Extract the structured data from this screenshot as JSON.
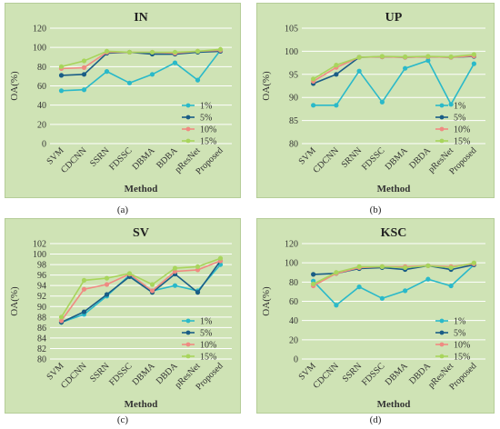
{
  "colors": {
    "panel_bg": "#cfe3b5",
    "panel_border": "#b5cd98",
    "grid": "#ffffff",
    "axis_text": "#333333"
  },
  "captions": [
    "(a)",
    "(b)",
    "(c)",
    "(d)"
  ],
  "chart_data": [
    {
      "type": "line",
      "title": "IN",
      "xlabel": "Method",
      "ylabel": "OA(%)",
      "categories": [
        "SVM",
        "CDCNN",
        "SSRN",
        "FDSSC",
        "DBMA",
        "BDBA",
        "pResNet",
        "Proposed"
      ],
      "ylim": [
        0,
        120
      ],
      "yticks": [
        0,
        20,
        40,
        60,
        80,
        100,
        120
      ],
      "legend": "right",
      "series": [
        {
          "name": "1%",
          "color": "#2ab9c9",
          "values": [
            55,
            56,
            75,
            63,
            72,
            84,
            66,
            97
          ]
        },
        {
          "name": "5%",
          "color": "#1a5d86",
          "values": [
            71,
            72,
            94,
            95,
            93,
            93,
            95,
            96
          ]
        },
        {
          "name": "10%",
          "color": "#f08a82",
          "values": [
            78,
            79,
            95,
            95,
            95,
            94,
            96,
            97
          ]
        },
        {
          "name": "15%",
          "color": "#a8d55c",
          "values": [
            80,
            86,
            96,
            95,
            95,
            95,
            96,
            98
          ]
        }
      ]
    },
    {
      "type": "line",
      "title": "UP",
      "xlabel": "Method",
      "ylabel": "OA(%)",
      "categories": [
        "SVM",
        "CDCNN",
        "SRNN",
        "FDSSC",
        "DBMA",
        "DBDA",
        "pResNet",
        "Proposed"
      ],
      "ylim": [
        80,
        105
      ],
      "yticks": [
        80,
        85,
        90,
        95,
        100,
        105
      ],
      "legend": "right",
      "series": [
        {
          "name": "1%",
          "color": "#2ab9c9",
          "values": [
            88.3,
            88.3,
            95.7,
            89.0,
            96.3,
            98.0,
            88.5,
            97.3
          ]
        },
        {
          "name": "5%",
          "color": "#1a5d86",
          "values": [
            93.0,
            95.0,
            98.7,
            98.8,
            98.7,
            98.8,
            98.7,
            98.9
          ]
        },
        {
          "name": "10%",
          "color": "#f08a82",
          "values": [
            93.5,
            96.5,
            98.7,
            98.8,
            98.7,
            98.8,
            98.7,
            99.0
          ]
        },
        {
          "name": "15%",
          "color": "#a8d55c",
          "values": [
            94.0,
            97.0,
            98.7,
            98.9,
            98.8,
            98.9,
            98.8,
            99.3
          ]
        }
      ]
    },
    {
      "type": "line",
      "title": "SV",
      "xlabel": "Method",
      "ylabel": "OA(%)",
      "categories": [
        "SVM",
        "CDCNN",
        "SSRN",
        "FDSSC",
        "DBMA",
        "DBDA",
        "pResNet",
        "Proposed"
      ],
      "ylim": [
        80,
        102
      ],
      "yticks": [
        80,
        82,
        84,
        86,
        88,
        90,
        92,
        94,
        96,
        98,
        100,
        102
      ],
      "legend": "right",
      "series": [
        {
          "name": "1%",
          "color": "#2ab9c9",
          "values": [
            87.0,
            88.5,
            92.0,
            96.0,
            93.0,
            94.0,
            93.0,
            98.0
          ]
        },
        {
          "name": "5%",
          "color": "#1a5d86",
          "values": [
            87.0,
            89.0,
            92.3,
            95.7,
            92.7,
            96.2,
            92.7,
            98.7
          ]
        },
        {
          "name": "10%",
          "color": "#f08a82",
          "values": [
            87.3,
            93.3,
            94.2,
            96.2,
            93.0,
            96.7,
            97.0,
            98.7
          ]
        },
        {
          "name": "15%",
          "color": "#a8d55c",
          "values": [
            88.0,
            95.0,
            95.4,
            96.3,
            94.2,
            97.3,
            97.6,
            99.2
          ]
        }
      ]
    },
    {
      "type": "line",
      "title": "KSC",
      "xlabel": "Method",
      "ylabel": "OA(%)",
      "categories": [
        "SVM",
        "CDCNN",
        "SSRN",
        "FDSSC",
        "DBMA",
        "DBDA",
        "pResNet",
        "Proposed"
      ],
      "ylim": [
        0,
        120
      ],
      "yticks": [
        0,
        20,
        40,
        60,
        80,
        100,
        120
      ],
      "legend": "right",
      "series": [
        {
          "name": "1%",
          "color": "#2ab9c9",
          "values": [
            81,
            56,
            75,
            63,
            71,
            83,
            76,
            98
          ]
        },
        {
          "name": "5%",
          "color": "#1a5d86",
          "values": [
            88,
            89,
            94,
            95,
            93,
            97,
            93,
            98
          ]
        },
        {
          "name": "10%",
          "color": "#f08a82",
          "values": [
            76,
            89,
            95,
            96,
            96,
            97,
            96,
            99
          ]
        },
        {
          "name": "15%",
          "color": "#a8d55c",
          "values": [
            78,
            90,
            96,
            96,
            95,
            97,
            95,
            100
          ]
        }
      ]
    }
  ]
}
